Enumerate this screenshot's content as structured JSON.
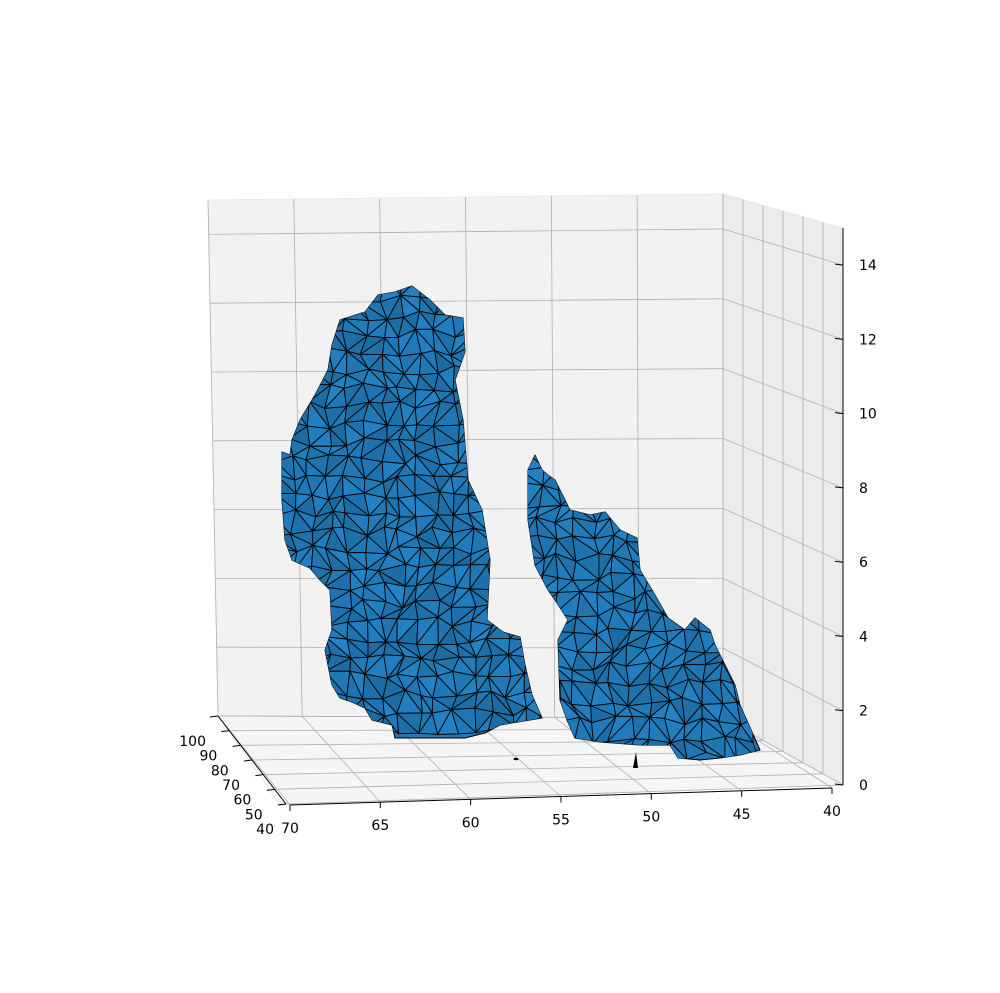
{
  "chart_data": {
    "type": "surface3d",
    "title": "",
    "xlabel": "",
    "ylabel": "",
    "zlabel": "",
    "x_axis": {
      "ticks": [
        "70",
        "65",
        "60",
        "55",
        "50",
        "45",
        "40"
      ],
      "range": [
        70,
        40
      ]
    },
    "y_axis": {
      "ticks": [
        "100",
        "90",
        "80",
        "70",
        "60",
        "50",
        "40"
      ],
      "range": [
        100,
        40
      ]
    },
    "z_axis": {
      "ticks": [
        "0",
        "2",
        "4",
        "6",
        "8",
        "10",
        "12",
        "14"
      ],
      "range": [
        0,
        15
      ]
    },
    "grid": true,
    "meshes": [
      {
        "description": "large mesh lump",
        "x_extent": [
          40,
          70
        ],
        "z_peak": 13.5
      },
      {
        "description": "smaller mesh lump",
        "x_extent": [
          40,
          55
        ],
        "z_peak": 8.5
      }
    ],
    "colors": {
      "face": "#1f77b4",
      "edge": "#000000",
      "pane": "#f2f2f2",
      "grid": "#b0b0b0"
    }
  }
}
